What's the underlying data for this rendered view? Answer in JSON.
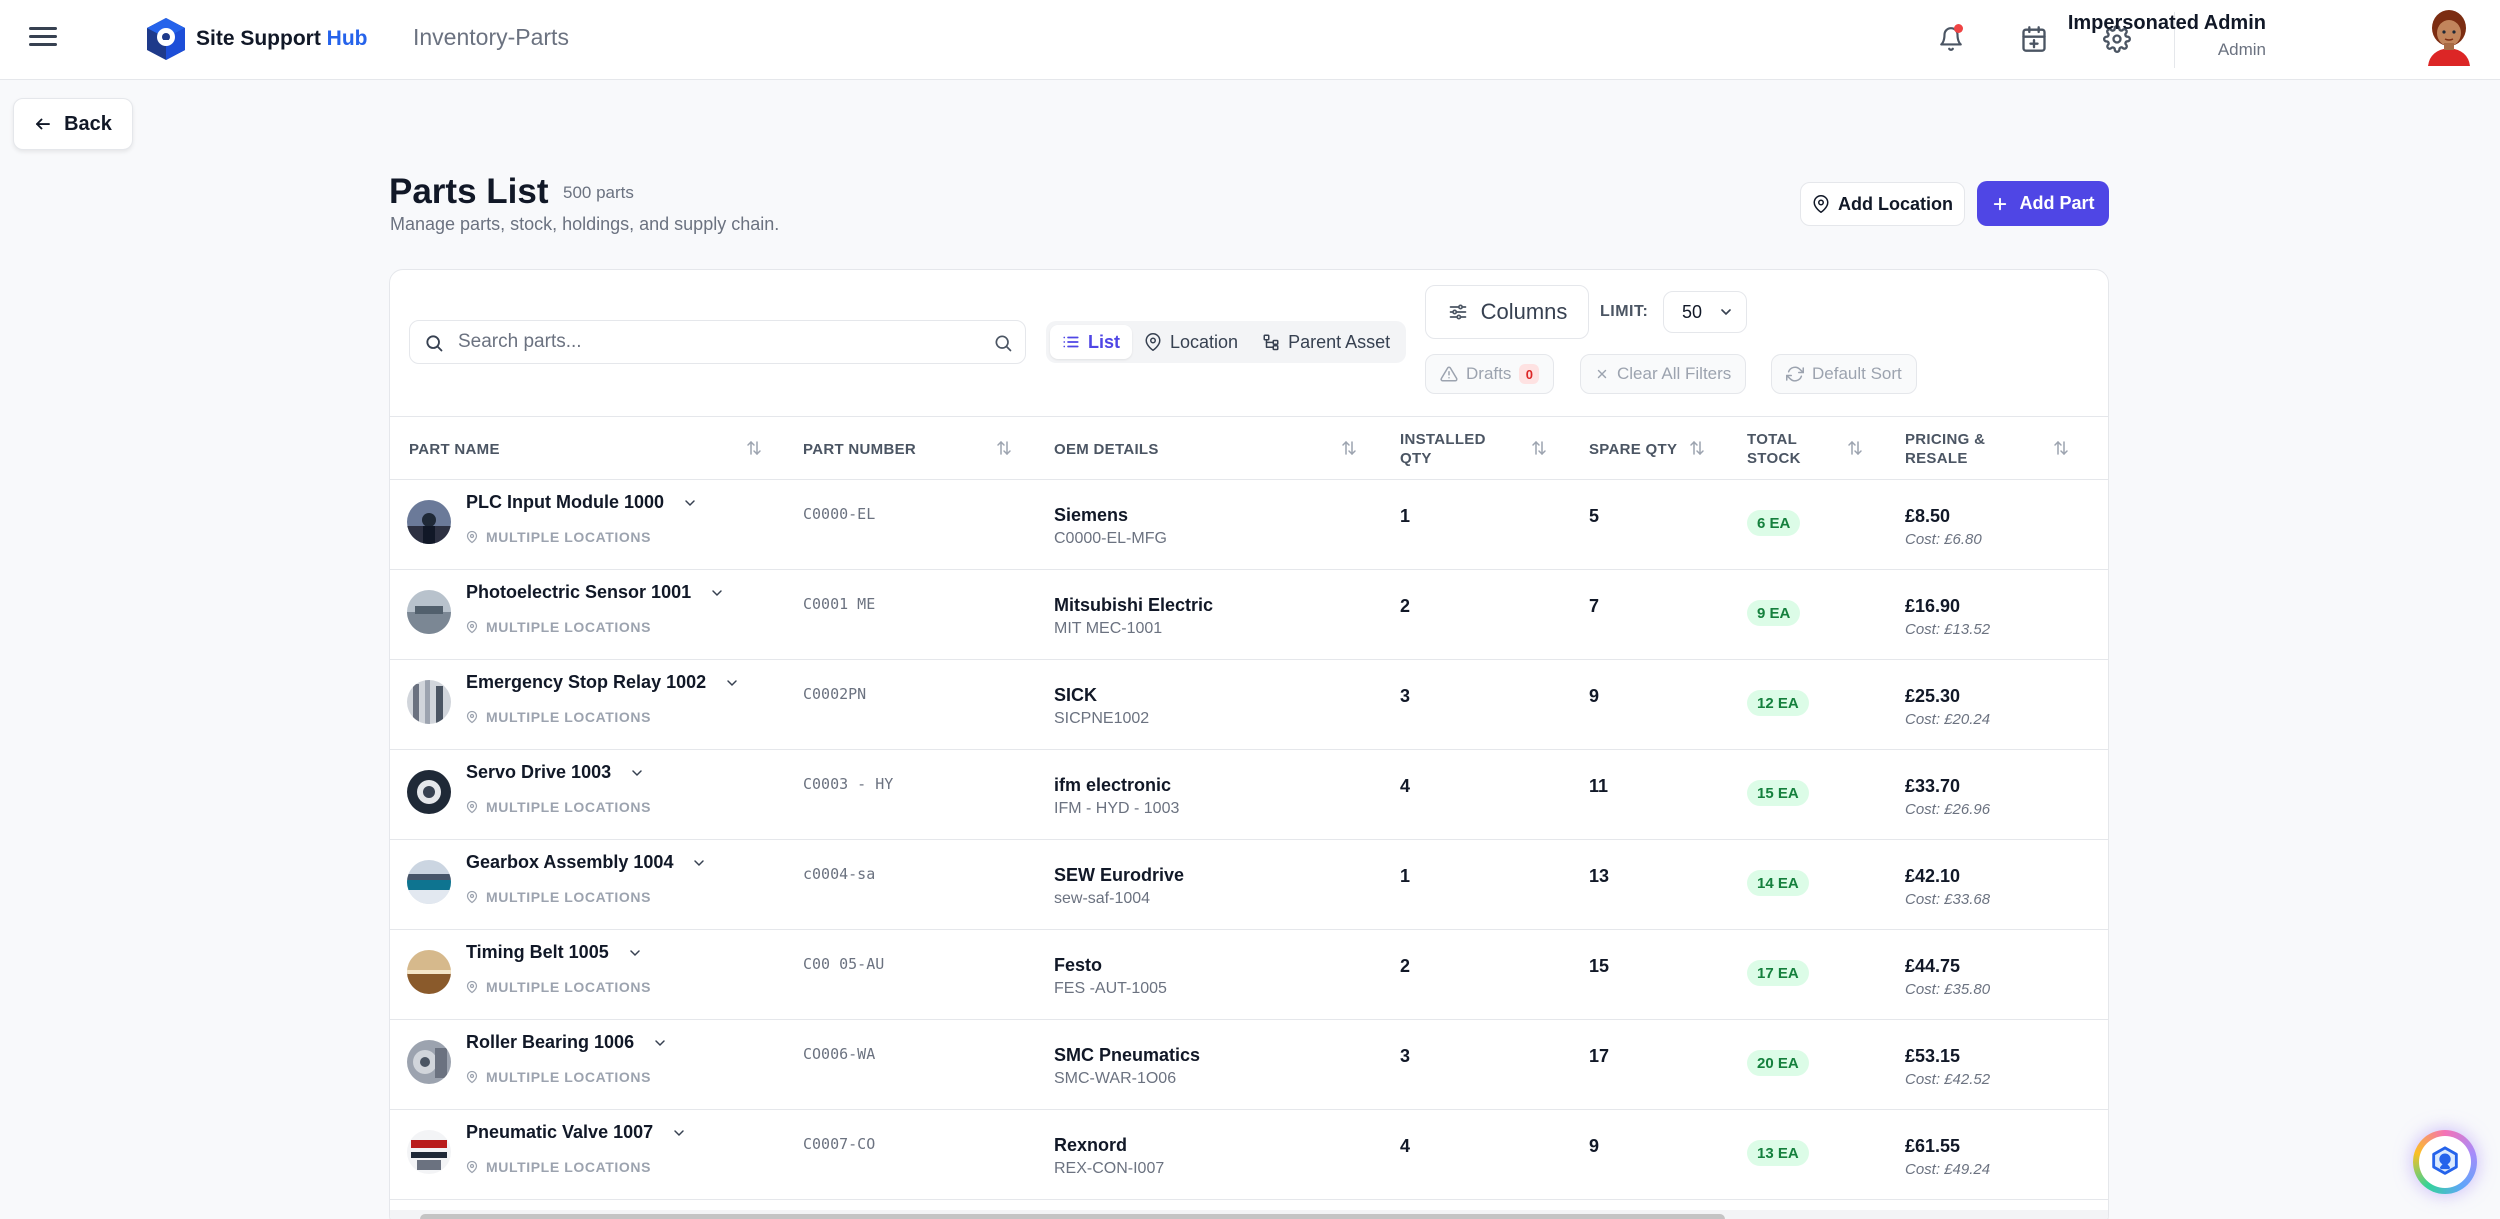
{
  "header": {
    "logo_text_main": "Site Support ",
    "logo_text_accent": "Hub",
    "module_title": "Inventory-Parts",
    "user_name": "Impersonated Admin",
    "user_role": "Admin"
  },
  "nav": {
    "back_label": "Back"
  },
  "page": {
    "title": "Parts List",
    "count": "500 parts",
    "subtitle": "Manage parts, stock, holdings, and supply chain.",
    "add_location_label": "Add Location",
    "add_part_label": "Add Part"
  },
  "toolbar": {
    "search_placeholder": "Search parts...",
    "views": [
      {
        "label": "List",
        "active": true
      },
      {
        "label": "Location",
        "active": false
      },
      {
        "label": "Parent Asset",
        "active": false
      }
    ],
    "columns_label": "Columns",
    "limit_label": "LIMIT:",
    "limit_value": "50",
    "drafts_label": "Drafts",
    "drafts_count": "0",
    "clear_filters_label": "Clear All Filters",
    "default_sort_label": "Default Sort"
  },
  "table": {
    "columns": [
      "PART NAME",
      "PART NUMBER",
      "OEM DETAILS",
      "INSTALLED QTY",
      "SPARE QTY",
      "TOTAL STOCK",
      "PRICING & RESALE"
    ],
    "location_label": "MULTIPLE LOCATIONS",
    "rows": [
      {
        "name": "PLC Input Module 1000",
        "part_number": "C0000-EL",
        "oem": "Siemens",
        "oem_code": "C0000-EL-MFG",
        "installed": "1",
        "spare": "5",
        "total": "6 EA",
        "price": "£8.50",
        "cost": "Cost: £6.80"
      },
      {
        "name": "Photoelectric Sensor 1001",
        "part_number": "C0001 ME",
        "oem": "Mitsubishi Electric",
        "oem_code": "MIT MEC-1001",
        "installed": "2",
        "spare": "7",
        "total": "9 EA",
        "price": "£16.90",
        "cost": "Cost: £13.52"
      },
      {
        "name": "Emergency Stop Relay 1002",
        "part_number": "C0002PN",
        "oem": "SICK",
        "oem_code": "SICPNE1002",
        "installed": "3",
        "spare": "9",
        "total": "12 EA",
        "price": "£25.30",
        "cost": "Cost: £20.24"
      },
      {
        "name": "Servo Drive 1003",
        "part_number": "C0003 - HY",
        "oem": "ifm electronic",
        "oem_code": "IFM - HYD - 1003",
        "installed": "4",
        "spare": "11",
        "total": "15 EA",
        "price": "£33.70",
        "cost": "Cost: £26.96"
      },
      {
        "name": "Gearbox Assembly 1004",
        "part_number": "c0004-sa",
        "oem": "SEW Eurodrive",
        "oem_code": "sew-saf-1004",
        "installed": "1",
        "spare": "13",
        "total": "14 EA",
        "price": "£42.10",
        "cost": "Cost: £33.68"
      },
      {
        "name": "Timing Belt 1005",
        "part_number": "C00 05-AU",
        "oem": "Festo",
        "oem_code": "FES -AUT-1005",
        "installed": "2",
        "spare": "15",
        "total": "17 EA",
        "price": "£44.75",
        "cost": "Cost: £35.80"
      },
      {
        "name": "Roller Bearing 1006",
        "part_number": "CO006-WA",
        "oem": "SMC Pneumatics",
        "oem_code": "SMC-WAR-1O06",
        "installed": "3",
        "spare": "17",
        "total": "20 EA",
        "price": "£53.15",
        "cost": "Cost: £42.52"
      },
      {
        "name": "Pneumatic Valve 1007",
        "part_number": "C0007-CO",
        "oem": "Rexnord",
        "oem_code": "REX-CON-I007",
        "installed": "4",
        "spare": "9",
        "total": "13 EA",
        "price": "£61.55",
        "cost": "Cost: £49.24"
      }
    ]
  },
  "icons": {
    "menu": "hamburger-icon",
    "notifications": "bell-icon",
    "calendar": "calendar-icon",
    "settings": "gear-icon",
    "back": "arrow-left-icon",
    "location": "map-pin-icon",
    "add": "plus-icon",
    "search": "search-icon",
    "sort": "sort-arrows-icon",
    "expand": "chevron-down-icon",
    "help": "help-assistant-icon"
  },
  "colors": {
    "accent": "#4f46e5",
    "logo_accent": "#2563eb",
    "stock_badge_bg": "#dcfce7",
    "stock_badge_text": "#15803d",
    "notification_dot": "#ef4444"
  }
}
